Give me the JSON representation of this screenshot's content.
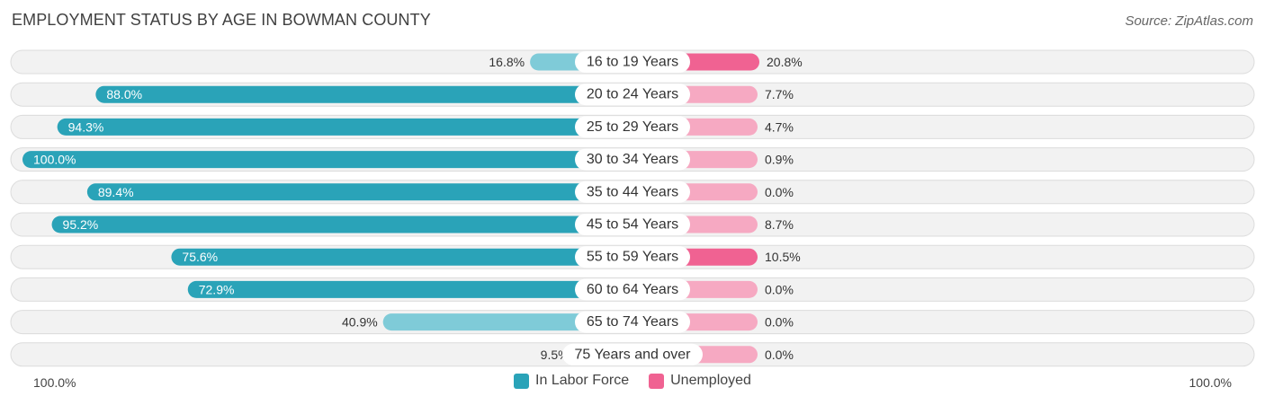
{
  "header": {
    "title": "EMPLOYMENT STATUS BY AGE IN BOWMAN COUNTY",
    "source": "Source: ZipAtlas.com"
  },
  "colors": {
    "labor_force": "#2aa3b8",
    "labor_force_light": "#7fcbd8",
    "unemployed": "#f06292",
    "unemployed_light": "#f6a9c2",
    "row_bg": "#f2f2f2",
    "row_border": "#dcdcdc"
  },
  "axis": {
    "left_label": "100.0%",
    "right_label": "100.0%"
  },
  "legend": {
    "labor_force": "In Labor Force",
    "unemployed": "Unemployed"
  },
  "chart_data": {
    "type": "bar",
    "orientation": "diverging-horizontal",
    "title": "EMPLOYMENT STATUS BY AGE IN BOWMAN COUNTY",
    "categories": [
      "16 to 19 Years",
      "20 to 24 Years",
      "25 to 29 Years",
      "30 to 34 Years",
      "35 to 44 Years",
      "45 to 54 Years",
      "55 to 59 Years",
      "60 to 64 Years",
      "65 to 74 Years",
      "75 Years and over"
    ],
    "series": [
      {
        "name": "In Labor Force",
        "values": [
          16.8,
          88.0,
          94.3,
          100.0,
          89.4,
          95.2,
          75.6,
          72.9,
          40.9,
          9.5
        ],
        "labels": [
          "16.8%",
          "88.0%",
          "94.3%",
          "100.0%",
          "89.4%",
          "95.2%",
          "75.6%",
          "72.9%",
          "40.9%",
          "9.5%"
        ]
      },
      {
        "name": "Unemployed",
        "values": [
          20.8,
          7.7,
          4.7,
          0.9,
          0.0,
          8.7,
          10.5,
          0.0,
          0.0,
          0.0
        ],
        "labels": [
          "20.8%",
          "7.7%",
          "4.7%",
          "0.9%",
          "0.0%",
          "8.7%",
          "10.5%",
          "0.0%",
          "0.0%",
          "0.0%"
        ]
      }
    ],
    "xlim": [
      -100,
      100
    ],
    "legend_position": "bottom-center"
  }
}
